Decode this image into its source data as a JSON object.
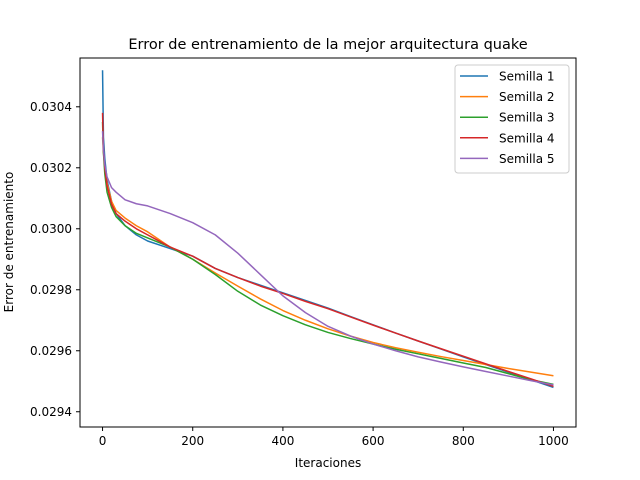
{
  "chart_data": {
    "type": "line",
    "title": "Error de entrenamiento de la mejor arquitectura quake",
    "xlabel": "Iteraciones",
    "ylabel": "Error de entrenamiento",
    "xlim": [
      -50,
      1050
    ],
    "ylim": [
      0.02935,
      0.03056
    ],
    "xticks": [
      0,
      200,
      400,
      600,
      800,
      1000
    ],
    "xtick_labels": [
      "0",
      "200",
      "400",
      "600",
      "800",
      "1000"
    ],
    "yticks": [
      0.0294,
      0.0296,
      0.0298,
      0.03,
      0.0302,
      0.0304
    ],
    "ytick_labels": [
      "0.0294",
      "0.0296",
      "0.0298",
      "0.0300",
      "0.0302",
      "0.0304"
    ],
    "grid": false,
    "legend_position": "top-right",
    "series": [
      {
        "name": "Semilla 1",
        "color": "#1f77b4",
        "x": [
          0,
          2,
          5,
          10,
          20,
          30,
          50,
          75,
          100,
          150,
          200,
          250,
          300,
          350,
          400,
          450,
          500,
          550,
          600,
          650,
          700,
          750,
          800,
          850,
          900,
          950,
          1000
        ],
        "y": [
          0.03052,
          0.0303,
          0.03023,
          0.03016,
          0.03009,
          0.03005,
          0.03001,
          0.02998,
          0.02996,
          0.029935,
          0.02991,
          0.02987,
          0.02984,
          0.029815,
          0.02979,
          0.029765,
          0.02974,
          0.029712,
          0.029685,
          0.029658,
          0.029632,
          0.029606,
          0.02958,
          0.029555,
          0.02953,
          0.029505,
          0.02948
        ]
      },
      {
        "name": "Semilla 2",
        "color": "#ff7f0e",
        "x": [
          0,
          2,
          5,
          10,
          20,
          30,
          50,
          75,
          100,
          150,
          200,
          250,
          300,
          350,
          400,
          450,
          500,
          550,
          600,
          650,
          700,
          750,
          800,
          850,
          900,
          950,
          1000
        ],
        "y": [
          0.0303,
          0.03025,
          0.0302,
          0.03015,
          0.03009,
          0.03006,
          0.030035,
          0.03001,
          0.02999,
          0.02994,
          0.0299,
          0.029855,
          0.029812,
          0.02977,
          0.029732,
          0.0297,
          0.029672,
          0.029648,
          0.029627,
          0.02961,
          0.029595,
          0.029581,
          0.029568,
          0.029555,
          0.029542,
          0.02953,
          0.029518
        ]
      },
      {
        "name": "Semilla 3",
        "color": "#2ca02c",
        "x": [
          0,
          2,
          5,
          10,
          20,
          30,
          50,
          75,
          100,
          150,
          200,
          250,
          300,
          350,
          400,
          450,
          500,
          550,
          600,
          650,
          700,
          750,
          800,
          850,
          900,
          950,
          1000
        ],
        "y": [
          0.03035,
          0.03025,
          0.03018,
          0.03012,
          0.03007,
          0.03004,
          0.03001,
          0.029985,
          0.02997,
          0.02994,
          0.0299,
          0.02985,
          0.029795,
          0.02975,
          0.029715,
          0.029685,
          0.02966,
          0.02964,
          0.029622,
          0.029605,
          0.02959,
          0.029575,
          0.02956,
          0.029545,
          0.029525,
          0.029505,
          0.02949
        ]
      },
      {
        "name": "Semilla 4",
        "color": "#d62728",
        "x": [
          0,
          2,
          5,
          10,
          20,
          30,
          50,
          75,
          100,
          150,
          200,
          250,
          300,
          350,
          400,
          450,
          500,
          550,
          600,
          650,
          700,
          750,
          800,
          850,
          900,
          950,
          1000
        ],
        "y": [
          0.03038,
          0.03026,
          0.0302,
          0.03014,
          0.03008,
          0.03005,
          0.030025,
          0.03,
          0.02998,
          0.02994,
          0.02991,
          0.02987,
          0.02984,
          0.029812,
          0.029788,
          0.029762,
          0.029738,
          0.029711,
          0.029684,
          0.029658,
          0.029632,
          0.029607,
          0.029582,
          0.029557,
          0.029532,
          0.029508,
          0.029483
        ]
      },
      {
        "name": "Semilla 5",
        "color": "#9467bd",
        "x": [
          0,
          2,
          5,
          10,
          20,
          30,
          50,
          75,
          100,
          150,
          200,
          250,
          300,
          350,
          400,
          450,
          500,
          550,
          600,
          650,
          700,
          750,
          800,
          850,
          900,
          950,
          1000
        ],
        "y": [
          0.03032,
          0.03026,
          0.03021,
          0.03017,
          0.030135,
          0.03012,
          0.030095,
          0.030082,
          0.030075,
          0.03005,
          0.03002,
          0.02998,
          0.02992,
          0.02985,
          0.02978,
          0.029725,
          0.02968,
          0.029648,
          0.029622,
          0.0296,
          0.02958,
          0.029563,
          0.029547,
          0.029532,
          0.029517,
          0.029502,
          0.029488
        ]
      }
    ]
  }
}
